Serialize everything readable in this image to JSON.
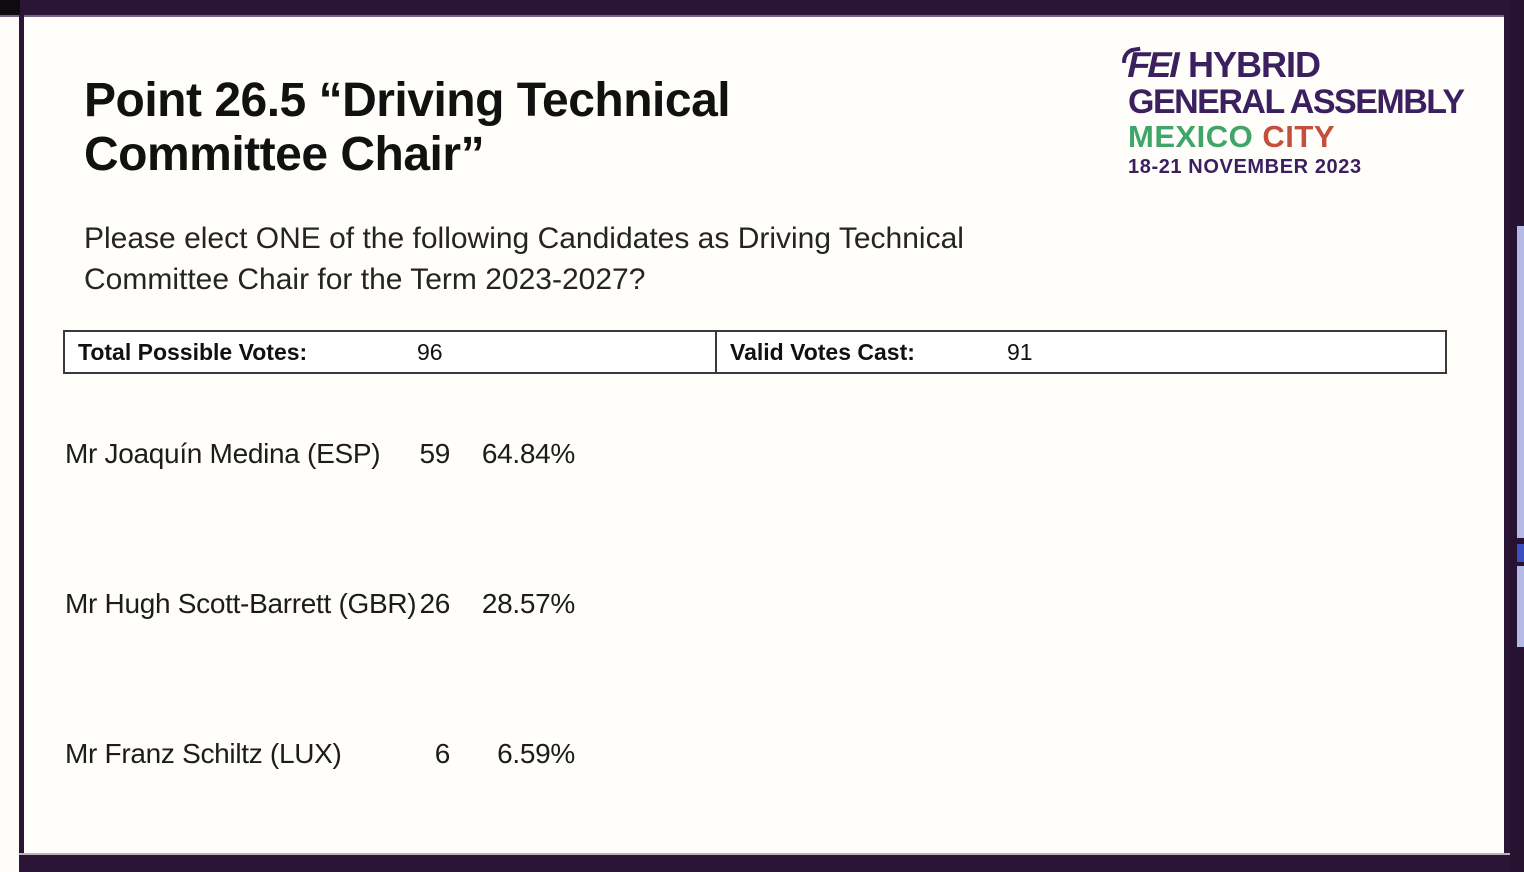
{
  "chrome": {
    "top_bar_color": "#2a1536",
    "corner_notch_color": "#0d0a10",
    "right_strip_color": "#271231",
    "right_strip_fragment_colors": [
      "#b4bae5",
      "#3a50c0",
      "#b4bae5"
    ],
    "bottom_bar_color": "#2a1536",
    "slide_frame_color": "#2a1536",
    "slide_background": "#fffefb"
  },
  "slide": {
    "title": "Point 26.5 “Driving Technical Committee Chair”",
    "question": "Please elect ONE of the following Candidates as Driving Technical Committee Chair for the Term 2023-2027?",
    "stats": {
      "total_label": "Total Possible Votes:",
      "total_value": "96",
      "valid_label": "Valid Votes Cast:",
      "valid_value": "91"
    },
    "results": [
      {
        "candidate": "Mr Joaquín Medina (ESP)",
        "votes": "59",
        "percent": "64.84%"
      },
      {
        "candidate": "Mr Hugh Scott-Barrett (GBR)",
        "votes": "26",
        "percent": "28.57%"
      },
      {
        "candidate": "Mr Franz Schiltz (LUX)",
        "votes": "6",
        "percent": "6.59%"
      }
    ],
    "logo": {
      "fei": "FEI",
      "hybrid": " HYBRID",
      "line2": "GENERAL ASSEMBLY",
      "mexico": "MEXICO ",
      "city": "CITY",
      "line4": "18-21 NOVEMBER 2023",
      "purple": "#3c1f5e",
      "green": "#3fa568",
      "red": "#c3503c"
    }
  }
}
